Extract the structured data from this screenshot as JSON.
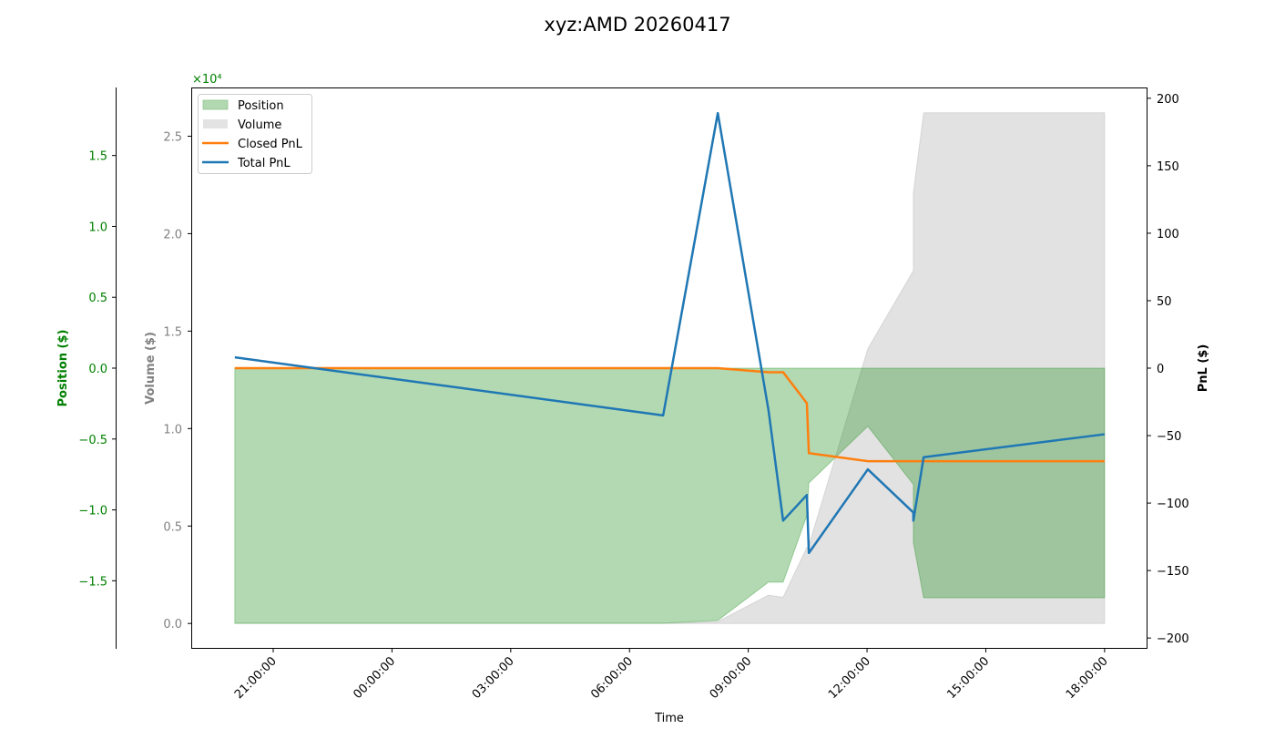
{
  "chart_data": {
    "type": "area",
    "title": "xyz:AMD 20260417",
    "xlabel": "Time",
    "x_ticks": [
      "21:00:00",
      "00:00:00",
      "03:00:00",
      "06:00:00",
      "09:00:00",
      "12:00:00",
      "15:00:00",
      "18:00:00"
    ],
    "x_range_hours_from_2100": [
      -1.3,
      22.05
    ],
    "axes": {
      "position": {
        "label": "Position ($)",
        "color": "#008000",
        "scale_label": "×10⁴",
        "ticks": [
          -1.5,
          -1.0,
          -0.5,
          0.0,
          0.5,
          1.0,
          1.5
        ],
        "tick_labels": [
          "−1.5",
          "−1.0",
          "−0.5",
          "0.0",
          "0.5",
          "1.0",
          "1.5"
        ],
        "ylim": [
          -1.98,
          1.98
        ]
      },
      "volume": {
        "label": "Volume ($)",
        "color": "#808080",
        "ticks": [
          0.0,
          0.5,
          1.0,
          1.5,
          2.0,
          2.5
        ],
        "tick_labels": [
          "0.0",
          "0.5",
          "1.0",
          "1.5",
          "2.0",
          "2.5"
        ],
        "ylim": [
          -0.13,
          2.75
        ]
      },
      "pnl": {
        "label": "PnL ($)",
        "color": "#000000",
        "ticks": [
          -200,
          -150,
          -100,
          -50,
          0,
          50,
          100,
          150,
          200
        ],
        "tick_labels": [
          "−200",
          "−150",
          "−100",
          "−50",
          "0",
          "50",
          "100",
          "150",
          "200"
        ],
        "ylim": [
          -208,
          208
        ]
      }
    },
    "legend": {
      "position": "upper left",
      "entries": [
        {
          "label": "Position",
          "kind": "patch",
          "color": "#b2d8b2"
        },
        {
          "label": "Volume",
          "kind": "patch",
          "color": "#e3e3e3"
        },
        {
          "label": "Closed PnL",
          "kind": "line",
          "color": "#ff7f0e"
        },
        {
          "label": "Total PnL",
          "kind": "line",
          "color": "#1f77b4"
        }
      ]
    },
    "series": [
      {
        "name": "Position",
        "type": "area",
        "axis": "position",
        "unit_multiplier": 10000,
        "color": "#008000",
        "fill_opacity": 0.3,
        "x_hours_from_2100": [
          -0.97,
          9.85,
          11.23,
          12.51,
          12.88,
          13.48,
          13.53,
          15.02,
          16.17,
          16.17,
          16.43,
          21.0
        ],
        "times": [
          "20:02",
          "06:51",
          "08:14",
          "09:31",
          "09:53",
          "10:29",
          "10:32",
          "12:01",
          "13:10",
          "13:10",
          "13:26",
          "18:00"
        ],
        "values": [
          -1.8,
          -1.8,
          -1.78,
          -1.51,
          -1.51,
          -1.04,
          -0.81,
          -0.41,
          -0.82,
          -1.23,
          -1.62,
          -1.62
        ]
      },
      {
        "name": "Volume",
        "type": "area",
        "axis": "volume",
        "unit_multiplier": 10000,
        "color": "#a0a0a0",
        "fill_opacity": 0.3,
        "x_hours_from_2100": [
          -0.97,
          9.85,
          11.23,
          12.51,
          12.88,
          13.48,
          13.53,
          15.02,
          16.17,
          16.17,
          16.43,
          21.0
        ],
        "times": [
          "20:02",
          "06:51",
          "08:14",
          "09:31",
          "09:53",
          "10:29",
          "10:32",
          "12:01",
          "13:10",
          "13:10",
          "13:26",
          "18:00"
        ],
        "values": [
          0.0,
          0.0,
          0.01,
          0.145,
          0.135,
          0.39,
          0.4,
          1.41,
          1.81,
          2.21,
          2.62,
          2.62
        ]
      },
      {
        "name": "Closed PnL",
        "type": "line",
        "axis": "pnl",
        "color": "#ff7f0e",
        "x_hours_from_2100": [
          -0.97,
          11.23,
          12.51,
          12.88,
          13.48,
          13.53,
          15.02,
          21.0
        ],
        "times": [
          "20:02",
          "08:14",
          "09:31",
          "09:53",
          "10:29",
          "10:32",
          "12:01",
          "18:00"
        ],
        "values": [
          0,
          0,
          -3,
          -3,
          -26,
          -63,
          -69,
          -69
        ]
      },
      {
        "name": "Total PnL",
        "type": "line",
        "axis": "pnl",
        "color": "#1f77b4",
        "x_hours_from_2100": [
          -0.97,
          9.85,
          11.23,
          12.51,
          12.88,
          13.48,
          13.53,
          15.02,
          16.17,
          16.17,
          16.43,
          21.0
        ],
        "times": [
          "20:02",
          "06:51",
          "08:14",
          "09:31",
          "09:53",
          "10:29",
          "10:32",
          "12:01",
          "13:10",
          "13:10",
          "13:26",
          "18:00"
        ],
        "values": [
          8,
          -35,
          189,
          -31,
          -113,
          -94,
          -137,
          -75,
          -107,
          -113,
          -66,
          -49
        ]
      }
    ]
  }
}
